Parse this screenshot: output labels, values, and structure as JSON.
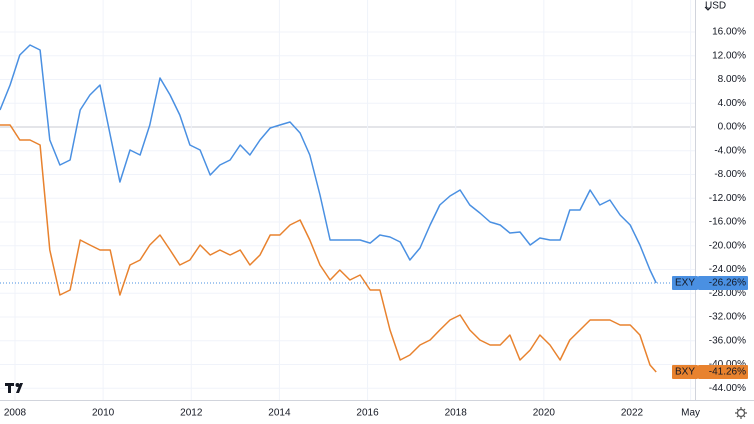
{
  "chart_data": {
    "type": "line",
    "currency": "USD",
    "x": [
      2007.66,
      2007.89,
      2008.11,
      2008.34,
      2008.57,
      2008.79,
      2009.02,
      2009.25,
      2009.48,
      2009.7,
      2009.93,
      2010.16,
      2010.38,
      2010.61,
      2010.84,
      2011.06,
      2011.29,
      2011.52,
      2011.74,
      2011.97,
      2012.2,
      2012.43,
      2012.65,
      2012.88,
      2013.11,
      2013.33,
      2013.56,
      2013.79,
      2014.01,
      2014.24,
      2014.47,
      2014.69,
      2014.92,
      2015.15,
      2015.37,
      2015.6,
      2015.83,
      2016.06,
      2016.28,
      2016.51,
      2016.74,
      2016.96,
      2017.19,
      2017.42,
      2017.64,
      2017.87,
      2018.1,
      2018.32,
      2018.55,
      2018.78,
      2019.01,
      2019.23,
      2019.46,
      2019.69,
      2019.91,
      2020.14,
      2020.37,
      2020.59,
      2020.82,
      2021.05,
      2021.27,
      2021.5,
      2021.73,
      2021.96,
      2022.18,
      2022.41,
      2022.55
    ],
    "series": [
      {
        "name": "EXY",
        "color": "#4a90e2",
        "values": [
          2.86,
          7.07,
          12.12,
          13.81,
          12.97,
          -2.19,
          -6.4,
          -5.56,
          2.86,
          5.39,
          7.07,
          -1.35,
          -9.26,
          -3.87,
          -4.72,
          0.34,
          8.25,
          5.39,
          2.02,
          -3.03,
          -3.87,
          -8.08,
          -6.4,
          -5.56,
          -3.03,
          -4.72,
          -2.19,
          -0.17,
          0.34,
          0.84,
          -1.01,
          -4.72,
          -11.45,
          -19.03,
          -19.03,
          -19.03,
          -19.03,
          -19.54,
          -18.19,
          -18.52,
          -19.37,
          -22.4,
          -20.38,
          -16.5,
          -13.14,
          -11.62,
          -10.61,
          -13.14,
          -14.48,
          -16.0,
          -16.5,
          -17.85,
          -17.68,
          -19.87,
          -18.69,
          -19.03,
          -19.03,
          -13.98,
          -13.98,
          -10.61,
          -13.14,
          -12.29,
          -14.82,
          -16.5,
          -19.87,
          -24.08,
          -26.26
        ],
        "value_labels": [
          null,
          null,
          null,
          null,
          null,
          null,
          null,
          null,
          null,
          null,
          null,
          null,
          null,
          null,
          null,
          null,
          null,
          null,
          null,
          null,
          null,
          null,
          null,
          null,
          null,
          null,
          null,
          null,
          null,
          null,
          null,
          null,
          null,
          null,
          null,
          null,
          null,
          null,
          null,
          null,
          null,
          null,
          null,
          null,
          null,
          null,
          null,
          null,
          null,
          null,
          null,
          null,
          null,
          null,
          null,
          null,
          null,
          null,
          null,
          null,
          null,
          null,
          null,
          null,
          null,
          null,
          "-26.26%"
        ]
      },
      {
        "name": "BXY",
        "color": "#e8822e",
        "values": [
          0.34,
          0.34,
          -2.19,
          -2.19,
          -3.03,
          -20.71,
          -28.29,
          -27.45,
          -19.03,
          -19.87,
          -20.71,
          -20.71,
          -28.29,
          -23.24,
          -22.4,
          -19.87,
          -18.19,
          -20.71,
          -23.24,
          -22.4,
          -19.87,
          -21.56,
          -20.71,
          -21.56,
          -20.71,
          -23.24,
          -21.56,
          -18.19,
          -18.19,
          -16.5,
          -15.66,
          -19.03,
          -23.24,
          -25.77,
          -24.08,
          -25.77,
          -24.92,
          -27.45,
          -27.45,
          -34.19,
          -39.24,
          -38.4,
          -36.71,
          -35.87,
          -34.19,
          -32.5,
          -31.66,
          -34.19,
          -35.87,
          -36.71,
          -36.71,
          -35.03,
          -39.24,
          -37.55,
          -35.03,
          -36.71,
          -39.24,
          -35.87,
          -34.19,
          -32.5,
          -32.5,
          -32.5,
          -33.34,
          -33.34,
          -35.03,
          -40.08,
          -41.26
        ],
        "value_labels": [
          null,
          null,
          null,
          null,
          null,
          null,
          null,
          null,
          null,
          null,
          null,
          null,
          null,
          null,
          null,
          null,
          null,
          null,
          null,
          null,
          null,
          null,
          null,
          null,
          null,
          null,
          null,
          null,
          null,
          null,
          null,
          null,
          null,
          null,
          null,
          null,
          null,
          null,
          null,
          null,
          null,
          null,
          null,
          null,
          null,
          null,
          null,
          null,
          null,
          null,
          null,
          null,
          null,
          null,
          null,
          null,
          null,
          null,
          null,
          null,
          null,
          null,
          null,
          null,
          null,
          null,
          "-41.26%"
        ]
      }
    ],
    "xlim": [
      2007.66,
      2023.43
    ],
    "xticks": [
      2008,
      2010,
      2012,
      2014,
      2016,
      2018,
      2020,
      2022,
      {
        "value": 2023.33,
        "label": "May"
      }
    ],
    "ylim": [
      -45.97,
      21.39
    ],
    "yticks": [
      {
        "value": 16,
        "label": "16.00%"
      },
      {
        "value": 12,
        "label": "12.00%"
      },
      {
        "value": 8,
        "label": "8.00%"
      },
      {
        "value": 4,
        "label": "4.00%"
      },
      {
        "value": 0,
        "label": "0.00%"
      },
      {
        "value": -4,
        "label": "-4.00%"
      },
      {
        "value": -8,
        "label": "-8.00%"
      },
      {
        "value": -12,
        "label": "-12.00%"
      },
      {
        "value": -16,
        "label": "-16.00%"
      },
      {
        "value": -20,
        "label": "-20.00%"
      },
      {
        "value": -24,
        "label": "-24.00%"
      },
      {
        "value": -28,
        "label": "-28.00%"
      },
      {
        "value": -32,
        "label": "-32.00%"
      },
      {
        "value": -36,
        "label": "-36.00%"
      },
      {
        "value": -40,
        "label": "-40.00%"
      },
      {
        "value": -44,
        "label": "-44.00%"
      }
    ],
    "grid": true
  }
}
